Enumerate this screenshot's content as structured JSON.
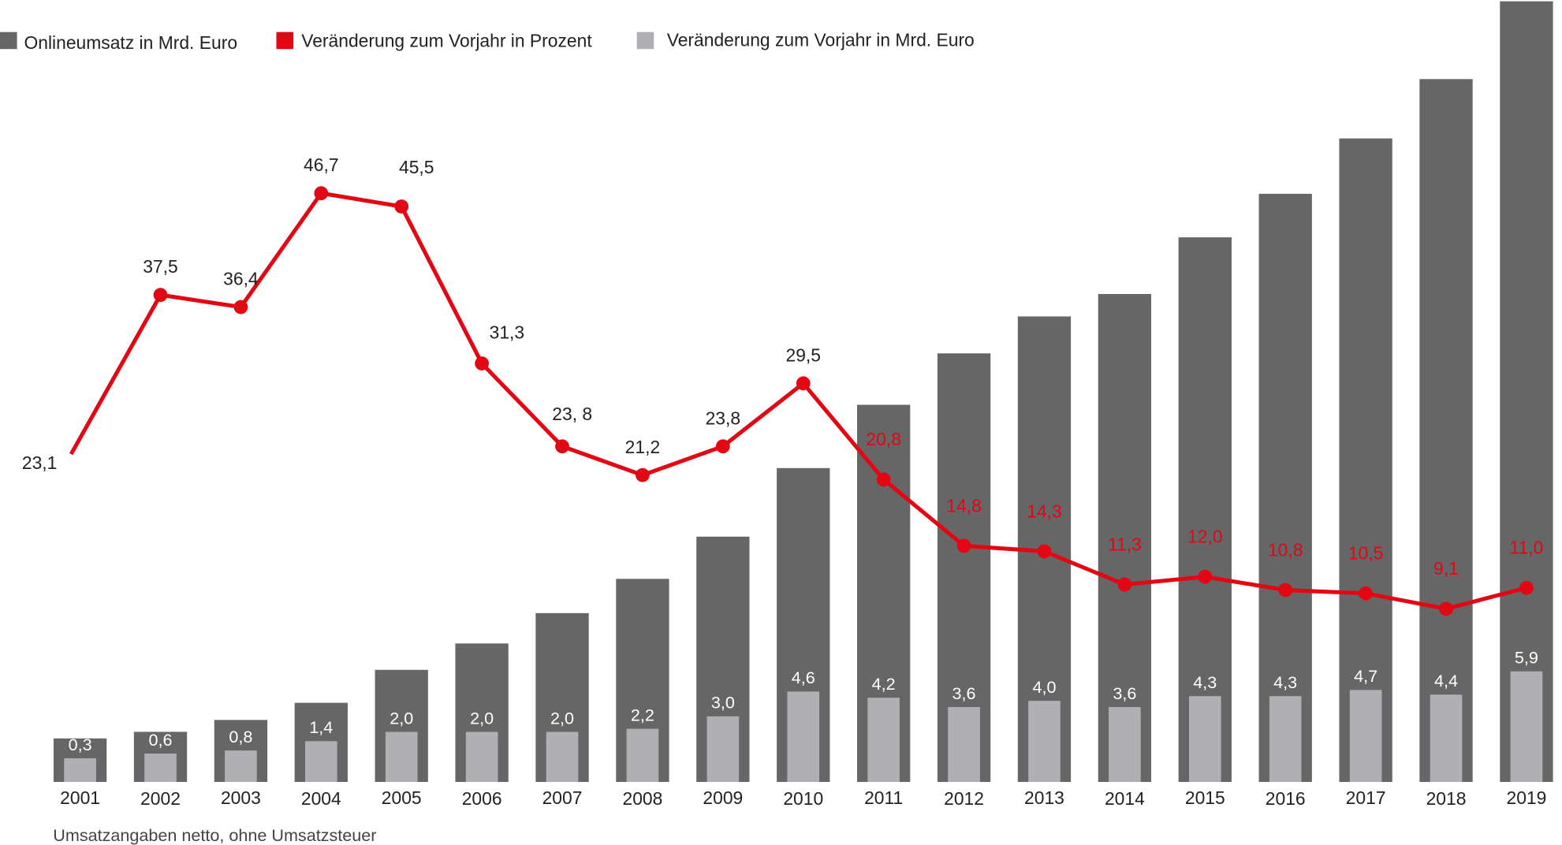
{
  "chart_data": {
    "type": "bar",
    "title": "",
    "xlabel": "",
    "ylabel": "",
    "footnote": "Umsatzangaben netto, ohne Umsatzsteuer",
    "legend_position": "top-left",
    "legend": [
      {
        "label": "Onlineumsatz in Mrd. Euro",
        "color": "#666666"
      },
      {
        "label": "Veränderung zum Vorjahr in Prozent",
        "color": "#e30613"
      },
      {
        "label": "Veränderung zum Vorjahr in Mrd. Euro",
        "color": "#b0b0b4"
      }
    ],
    "categories": [
      "2001",
      "2002",
      "2003",
      "2004",
      "2005",
      "2006",
      "2007",
      "2008",
      "2009",
      "2010",
      "2011",
      "2012",
      "2013",
      "2014",
      "2015",
      "2016",
      "2017",
      "2018",
      "2019"
    ],
    "series": [
      {
        "name": "Onlineumsatz in Mrd. Euro",
        "type": "bar",
        "color": "#666666",
        "values": [
          3.3,
          3.8,
          4.7,
          6.0,
          8.5,
          10.5,
          12.8,
          15.4,
          18.6,
          23.8,
          28.6,
          32.5,
          35.3,
          37.0,
          41.3,
          44.6,
          48.8,
          53.3,
          59.2
        ]
      },
      {
        "name": "Veränderung zum Vorjahr in Mrd. Euro",
        "type": "bar",
        "color": "#b0b0b4",
        "values": [
          0.3,
          0.6,
          0.8,
          1.4,
          2.0,
          2.0,
          2.0,
          2.2,
          3.0,
          4.6,
          4.2,
          3.6,
          4.0,
          3.6,
          4.3,
          4.3,
          4.7,
          4.4,
          5.9
        ],
        "labels": [
          "0,3",
          "0,6",
          "0,8",
          "1,4",
          "2,0",
          "2,0",
          "2,0",
          "2,2",
          "3,0",
          "4,6",
          "4,2",
          "3,6",
          "4,0",
          "3,6",
          "4,3",
          "4,3",
          "4,7",
          "4,4",
          "5,9"
        ]
      },
      {
        "name": "Veränderung zum Vorjahr in Prozent",
        "type": "line",
        "color": "#e30613",
        "values": [
          23.1,
          37.5,
          36.4,
          46.7,
          45.5,
          31.3,
          23.8,
          21.2,
          23.8,
          29.5,
          20.8,
          14.8,
          14.3,
          11.3,
          12.0,
          10.8,
          10.5,
          9.1,
          11.0
        ],
        "labels": [
          "23,1",
          "37,5",
          "36,4",
          "46,7",
          "45,5",
          "31,3",
          "23, 8",
          "21,2",
          "23,8",
          "29,5",
          "20,8",
          "14,8",
          "14,3",
          "11,3",
          "12,0",
          "10,8",
          "10,5",
          "9,1",
          "11,0"
        ]
      }
    ]
  }
}
